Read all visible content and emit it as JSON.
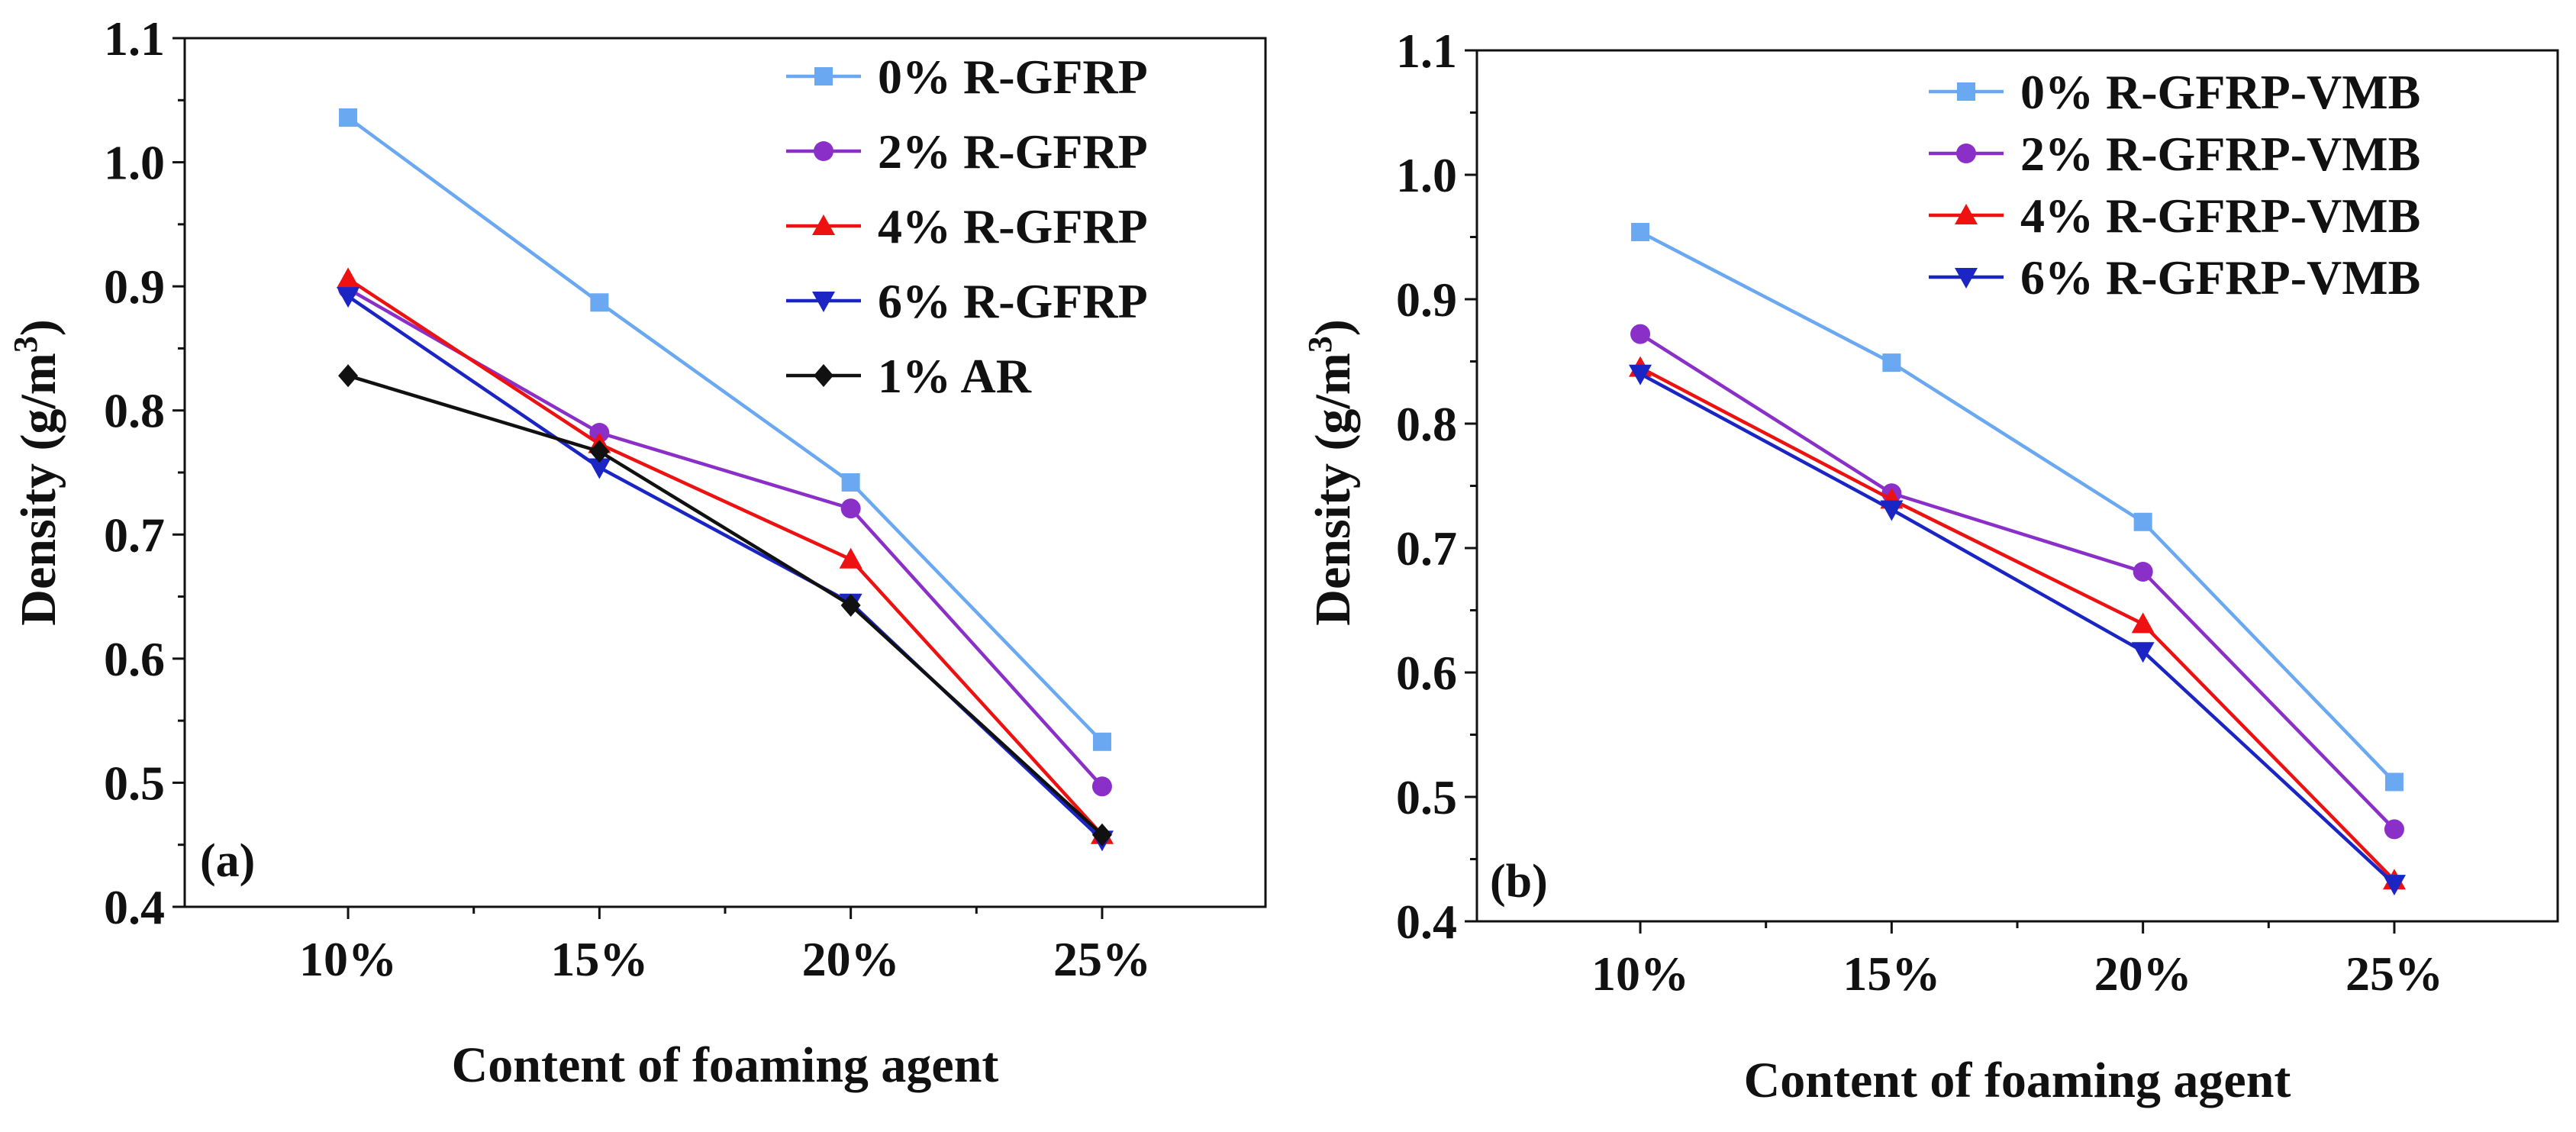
{
  "chart_data": [
    {
      "type": "line",
      "panel_label": "(a)",
      "categories": [
        "10%",
        "15%",
        "20%",
        "25%"
      ],
      "xlabel": "Content of foaming agent",
      "ylabel_main": "Density (g/m",
      "ylabel_sup": "3",
      "ylabel_tail": ")",
      "ylim": [
        0.4,
        1.1
      ],
      "yticks": [
        0.4,
        0.5,
        0.6,
        0.7,
        0.8,
        0.9,
        1.0,
        1.1
      ],
      "ytick_labels": [
        "0.4",
        "0.5",
        "0.6",
        "0.7",
        "0.8",
        "0.9",
        "1.0",
        "1.1"
      ],
      "grid": false,
      "legend_position": "top-right",
      "series": [
        {
          "name": "0% R-GFRP",
          "color": "#6aa9f2",
          "marker": "square",
          "values": [
            1.036,
            0.887,
            0.742,
            0.533
          ]
        },
        {
          "name": "2% R-GFRP",
          "color": "#8b2fc9",
          "marker": "circle",
          "values": [
            0.898,
            0.782,
            0.721,
            0.497
          ]
        },
        {
          "name": "4% R-GFRP",
          "color": "#ee1111",
          "marker": "triangle-up",
          "values": [
            0.906,
            0.773,
            0.68,
            0.458
          ]
        },
        {
          "name": "6% R-GFRP",
          "color": "#1a25c4",
          "marker": "triangle-down",
          "values": [
            0.892,
            0.754,
            0.645,
            0.454
          ]
        },
        {
          "name": "1% AR",
          "color": "#111111",
          "marker": "diamond",
          "values": [
            0.828,
            0.767,
            0.643,
            0.458
          ]
        }
      ]
    },
    {
      "type": "line",
      "panel_label": "(b)",
      "categories": [
        "10%",
        "15%",
        "20%",
        "25%"
      ],
      "xlabel": "Content of foaming agent",
      "ylabel_main": "Density (g/m",
      "ylabel_sup": "3",
      "ylabel_tail": ")",
      "ylim": [
        0.4,
        1.1
      ],
      "yticks": [
        0.4,
        0.5,
        0.6,
        0.7,
        0.8,
        0.9,
        1.0,
        1.1
      ],
      "ytick_labels": [
        "0.4",
        "0.5",
        "0.6",
        "0.7",
        "0.8",
        "0.9",
        "1.0",
        "1.1"
      ],
      "grid": false,
      "legend_position": "top-right",
      "series": [
        {
          "name": "0% R-GFRP-VMB",
          "color": "#6aa9f2",
          "marker": "square",
          "values": [
            0.954,
            0.849,
            0.721,
            0.512
          ]
        },
        {
          "name": "2% R-GFRP-VMB",
          "color": "#8b2fc9",
          "marker": "circle",
          "values": [
            0.872,
            0.744,
            0.681,
            0.474
          ]
        },
        {
          "name": "4% R-GFRP-VMB",
          "color": "#ee1111",
          "marker": "triangle-up",
          "values": [
            0.845,
            0.739,
            0.639,
            0.433
          ]
        },
        {
          "name": "6% R-GFRP-VMB",
          "color": "#1a25c4",
          "marker": "triangle-down",
          "values": [
            0.84,
            0.731,
            0.617,
            0.43
          ]
        }
      ]
    }
  ]
}
